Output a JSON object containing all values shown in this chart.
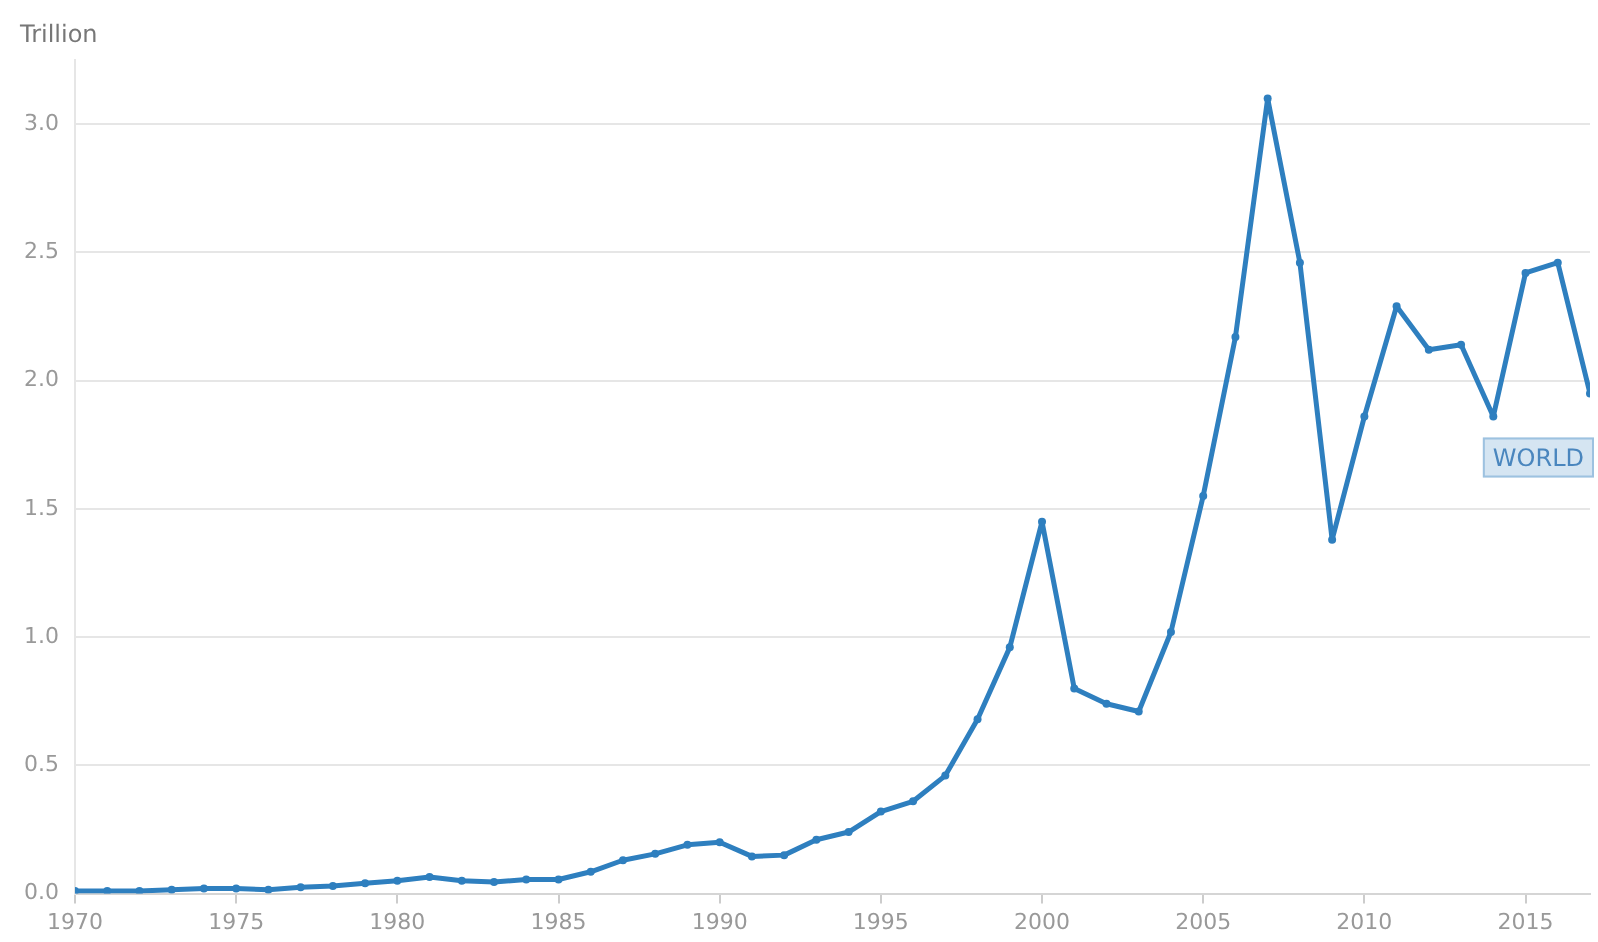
{
  "chart_data": {
    "type": "line",
    "ylabel": "Trillion",
    "x": [
      1970,
      1971,
      1972,
      1973,
      1974,
      1975,
      1976,
      1977,
      1978,
      1979,
      1980,
      1981,
      1982,
      1983,
      1984,
      1985,
      1986,
      1987,
      1988,
      1989,
      1990,
      1991,
      1992,
      1993,
      1994,
      1995,
      1996,
      1997,
      1998,
      1999,
      2000,
      2001,
      2002,
      2003,
      2004,
      2005,
      2006,
      2007,
      2008,
      2009,
      2010,
      2011,
      2012,
      2013,
      2014,
      2015,
      2016,
      2017
    ],
    "series": [
      {
        "color": "#2e7fbf",
        "values": [
          0.01,
          0.01,
          0.01,
          0.015,
          0.02,
          0.02,
          0.015,
          0.025,
          0.03,
          0.04,
          0.05,
          0.065,
          0.05,
          0.045,
          0.055,
          0.055,
          0.085,
          0.13,
          0.155,
          0.19,
          0.2,
          0.145,
          0.15,
          0.21,
          0.24,
          0.32,
          0.36,
          0.46,
          0.68,
          0.96,
          1.45,
          0.8,
          0.74,
          0.71,
          1.02,
          1.55,
          2.17,
          3.1,
          2.46,
          1.38,
          1.86,
          2.29,
          2.12,
          2.14,
          1.86,
          2.42,
          2.46,
          1.95
        ]
      }
    ],
    "xlim": [
      1970,
      2017
    ],
    "xticks": [
      1970,
      1975,
      1980,
      1985,
      1990,
      1995,
      2000,
      2005,
      2010,
      2015
    ],
    "ylim": [
      0,
      3.25
    ],
    "yticks": [
      {
        "value": 0,
        "label": "0.0"
      },
      0.5,
      {
        "value": 1,
        "label": "1.0"
      },
      1.5,
      {
        "value": 2,
        "label": "2.0"
      },
      2.5,
      {
        "value": 3,
        "label": "3.0"
      }
    ],
    "grid": "y",
    "legend": false,
    "marker": "circle",
    "line_style": "solid",
    "annotations": [
      {
        "text": "WORLD",
        "x": 2017,
        "y": 1.95
      }
    ]
  }
}
